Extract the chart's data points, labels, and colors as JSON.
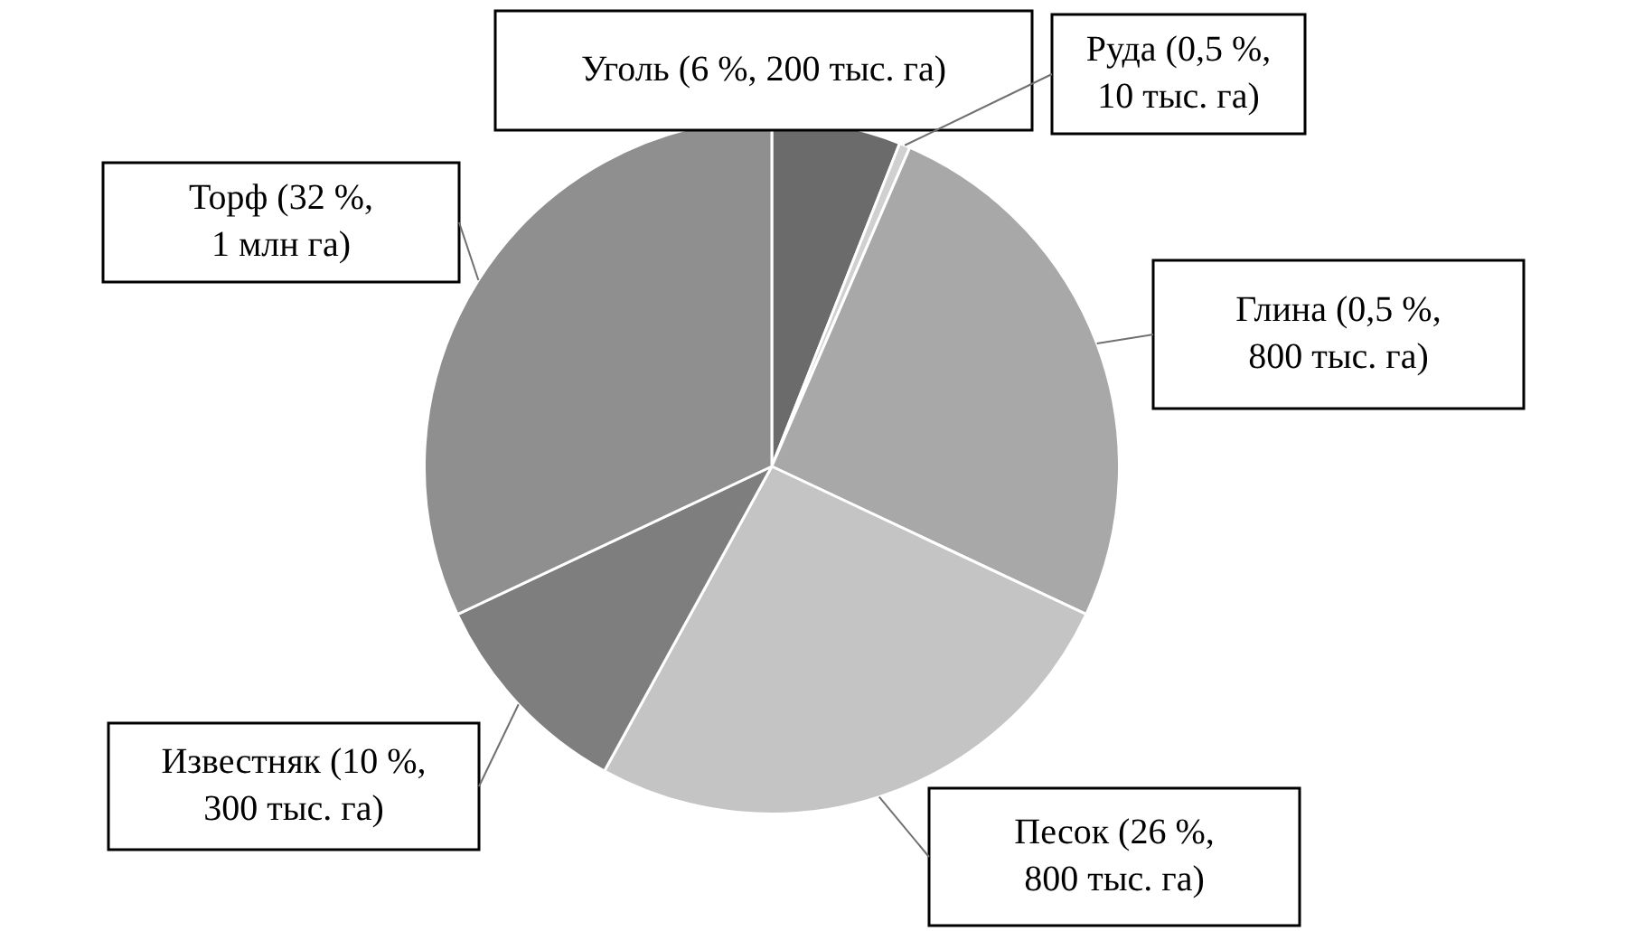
{
  "chart_data": {
    "type": "pie",
    "categories": [
      "Уголь (6 %, 200 тыс. га)",
      "Руда (0,5 %, 10 тыс. га)",
      "Глина (0,5 %, 800 тыс. га)",
      "Песок (26 %, 800 тыс. га)",
      "Известняк (10 %, 300 тыс. га)",
      "Торф (32 %, 1 млн га)"
    ],
    "values": [
      6,
      0.5,
      25.5,
      26,
      10,
      32
    ],
    "colors": [
      "#6b6b6b",
      "#d0d0d0",
      "#a8a8a8",
      "#c4c4c4",
      "#7e7e7e",
      "#8f8f8f"
    ]
  }
}
